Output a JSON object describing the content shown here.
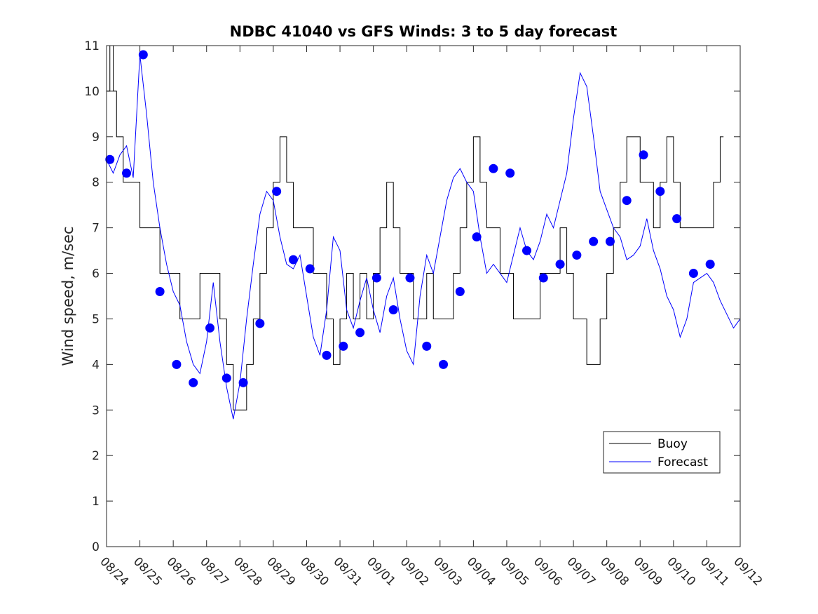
{
  "chart_data": {
    "type": "line",
    "title": "NDBC 41040 vs GFS Winds: 3 to 5 day forecast",
    "xlabel": "",
    "ylabel": "Wind speed, m/sec",
    "x_unit": "days since 08/24",
    "xlim": [
      0,
      19
    ],
    "ylim": [
      0,
      11
    ],
    "x_tick_labels": [
      "08/24",
      "08/25",
      "08/26",
      "08/27",
      "08/28",
      "08/29",
      "08/30",
      "08/31",
      "09/01",
      "09/02",
      "09/03",
      "09/04",
      "09/05",
      "09/06",
      "09/07",
      "09/08",
      "09/09",
      "09/10",
      "09/11",
      "09/12"
    ],
    "y_ticks": [
      0,
      1,
      2,
      3,
      4,
      5,
      6,
      7,
      8,
      9,
      10,
      11
    ],
    "legend": [
      "Buoy",
      "Forecast"
    ],
    "legend_position": "lower-right",
    "colors": {
      "buoy": "#000000",
      "forecast": "#0000ff"
    },
    "series": [
      {
        "name": "Buoy",
        "x": [
          0.0,
          0.1,
          0.2,
          0.3,
          0.4,
          0.5,
          0.6,
          0.8,
          1.0,
          1.2,
          1.4,
          1.6,
          1.8,
          2.0,
          2.2,
          2.4,
          2.6,
          2.8,
          3.0,
          3.2,
          3.4,
          3.6,
          3.8,
          4.0,
          4.2,
          4.4,
          4.6,
          4.8,
          5.0,
          5.2,
          5.4,
          5.6,
          5.8,
          6.0,
          6.2,
          6.4,
          6.6,
          6.8,
          7.0,
          7.2,
          7.4,
          7.6,
          7.8,
          8.0,
          8.2,
          8.4,
          8.6,
          8.8,
          9.0,
          9.2,
          9.4,
          9.6,
          9.8,
          10.0,
          10.2,
          10.4,
          10.6,
          10.8,
          11.0,
          11.2,
          11.4,
          11.6,
          11.8,
          12.0,
          12.2,
          12.4,
          12.6,
          12.8,
          13.0,
          13.2,
          13.4,
          13.6,
          13.8,
          14.0,
          14.2,
          14.4,
          14.6,
          14.8,
          15.0,
          15.2,
          15.4,
          15.6,
          15.8,
          16.0,
          16.2,
          16.4,
          16.6,
          16.8,
          17.0,
          17.2,
          17.4,
          17.6,
          17.8,
          18.0,
          18.2,
          18.4
        ],
        "y": [
          10,
          11,
          10,
          9,
          9,
          8,
          8,
          8,
          7,
          7,
          7,
          6,
          6,
          6,
          5,
          5,
          5,
          6,
          6,
          6,
          5,
          4,
          3,
          3,
          4,
          5,
          6,
          7,
          8,
          9,
          8,
          7,
          7,
          7,
          6,
          6,
          5,
          4,
          5,
          6,
          5,
          6,
          5,
          6,
          7,
          8,
          7,
          6,
          6,
          5,
          5,
          6,
          5,
          5,
          5,
          6,
          7,
          8,
          9,
          8,
          7,
          7,
          6,
          6,
          5,
          5,
          5,
          5,
          6,
          6,
          6,
          7,
          6,
          5,
          5,
          4,
          4,
          5,
          6,
          7,
          8,
          9,
          9,
          8,
          8,
          7,
          8,
          9,
          8,
          7,
          7,
          7,
          7,
          7,
          8,
          9
        ]
      },
      {
        "name": "Forecast",
        "x": [
          0.0,
          0.2,
          0.4,
          0.6,
          0.8,
          1.0,
          1.2,
          1.4,
          1.6,
          1.8,
          2.0,
          2.2,
          2.4,
          2.6,
          2.8,
          3.0,
          3.2,
          3.4,
          3.6,
          3.8,
          4.0,
          4.2,
          4.4,
          4.6,
          4.8,
          5.0,
          5.2,
          5.4,
          5.6,
          5.8,
          6.0,
          6.2,
          6.4,
          6.6,
          6.8,
          7.0,
          7.2,
          7.4,
          7.6,
          7.8,
          8.0,
          8.2,
          8.4,
          8.6,
          8.8,
          9.0,
          9.2,
          9.4,
          9.6,
          9.8,
          10.0,
          10.2,
          10.4,
          10.6,
          10.8,
          11.0,
          11.2,
          11.4,
          11.6,
          11.8,
          12.0,
          12.2,
          12.4,
          12.6,
          12.8,
          13.0,
          13.2,
          13.4,
          13.6,
          13.8,
          14.0,
          14.2,
          14.4,
          14.6,
          14.8,
          15.0,
          15.2,
          15.4,
          15.6,
          15.8,
          16.0,
          16.2,
          16.4,
          16.6,
          16.8,
          17.0,
          17.2,
          17.4,
          17.6,
          17.8,
          18.0,
          18.2,
          18.4,
          18.6,
          18.8,
          19.0
        ],
        "y": [
          8.5,
          8.2,
          8.6,
          8.8,
          8.1,
          10.8,
          9.5,
          8.0,
          7.0,
          6.2,
          5.6,
          5.3,
          4.5,
          4.0,
          3.8,
          4.5,
          5.8,
          4.5,
          3.5,
          2.8,
          3.6,
          5.0,
          6.2,
          7.3,
          7.8,
          7.6,
          6.8,
          6.2,
          6.1,
          6.4,
          5.5,
          4.6,
          4.2,
          5.2,
          6.8,
          6.5,
          5.2,
          4.8,
          5.4,
          5.9,
          5.2,
          4.7,
          5.5,
          5.9,
          5.0,
          4.3,
          4.0,
          5.5,
          6.4,
          6.0,
          6.8,
          7.6,
          8.1,
          8.3,
          8.0,
          7.8,
          6.8,
          6.0,
          6.2,
          6.0,
          5.8,
          6.4,
          7.0,
          6.5,
          6.3,
          6.7,
          7.3,
          7.0,
          7.6,
          8.2,
          9.4,
          10.4,
          10.1,
          9.0,
          7.8,
          7.4,
          7.0,
          6.8,
          6.3,
          6.4,
          6.6,
          7.2,
          6.5,
          6.1,
          5.5,
          5.2,
          4.6,
          5.0,
          5.8,
          5.9,
          6.0,
          5.8,
          5.4,
          5.1,
          4.8,
          5.0
        ],
        "markers": {
          "x": [
            0.1,
            0.6,
            1.1,
            1.6,
            2.1,
            2.6,
            3.1,
            3.6,
            4.1,
            4.6,
            5.1,
            5.6,
            6.1,
            6.6,
            7.1,
            7.6,
            8.1,
            8.6,
            9.1,
            9.6,
            10.1,
            10.6,
            11.1,
            11.6,
            12.1,
            12.6,
            13.1,
            13.6,
            14.1,
            14.6,
            15.1,
            15.6,
            16.1,
            16.6,
            17.1,
            17.6,
            18.1
          ],
          "y": [
            8.5,
            8.2,
            10.8,
            5.6,
            4.0,
            3.6,
            4.8,
            3.7,
            3.6,
            4.9,
            7.8,
            6.3,
            6.1,
            4.2,
            4.4,
            4.7,
            5.9,
            5.2,
            5.9,
            4.4,
            4.0,
            5.6,
            6.8,
            8.3,
            8.2,
            6.5,
            5.9,
            6.2,
            6.4,
            6.7,
            6.7,
            7.6,
            8.6,
            7.8,
            7.2,
            6.0,
            6.2
          ]
        }
      }
    ]
  }
}
